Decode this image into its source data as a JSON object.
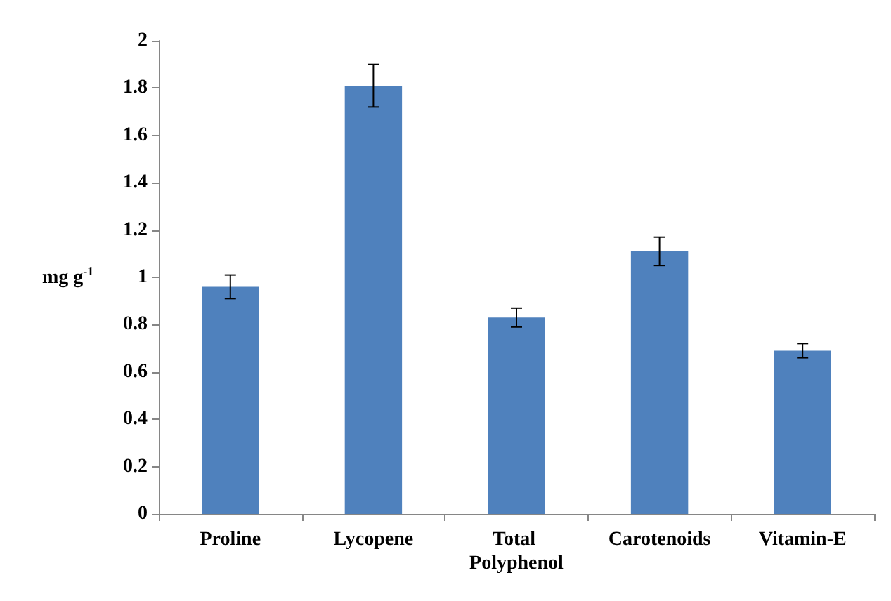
{
  "chart_data": {
    "type": "bar",
    "ylabel": "mg g$^{-1}$",
    "categories": [
      "Proline",
      "Lycopene",
      "Total Polyphenol",
      "Carotenoids",
      "Vitamin-E"
    ],
    "values": [
      0.96,
      1.81,
      0.83,
      1.11,
      0.69
    ],
    "errors": [
      0.05,
      0.09,
      0.04,
      0.06,
      0.03
    ],
    "color": "#4f81bd",
    "ylim": [
      0,
      2
    ],
    "yticks": [
      0,
      0.2,
      0.4,
      0.6,
      0.8,
      1,
      1.2,
      1.4,
      1.6,
      1.8,
      2
    ],
    "grid": false
  }
}
